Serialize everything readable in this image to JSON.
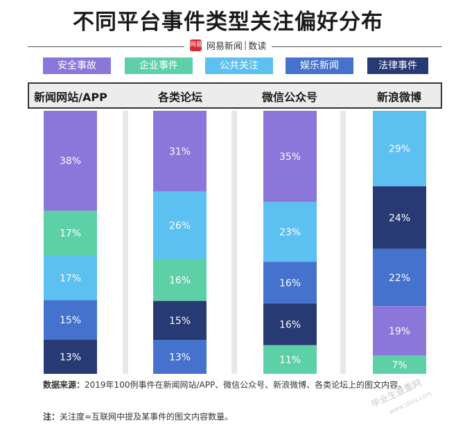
{
  "title": "不同平台事件类型关注偏好分布",
  "brand": {
    "logo_text": "网易",
    "name": "网易新闻",
    "section": "数读"
  },
  "colors": {
    "安全事故": "#8b76d9",
    "企业事件": "#5ed0a8",
    "公共关注": "#5cc0f0",
    "娱乐新闻": "#4472cc",
    "法律事件": "#283a73"
  },
  "chart_data": {
    "type": "bar",
    "stacked": true,
    "unit": "%",
    "categories": [
      "新闻网站/APP",
      "各类论坛",
      "微信公众号",
      "新浪微博"
    ],
    "legend": [
      "安全事故",
      "企业事件",
      "公共关注",
      "娱乐新闻",
      "法律事件"
    ],
    "stacks": [
      {
        "category": "新闻网站/APP",
        "segments": [
          {
            "name": "安全事故",
            "value": 38
          },
          {
            "name": "企业事件",
            "value": 17
          },
          {
            "name": "公共关注",
            "value": 17
          },
          {
            "name": "娱乐新闻",
            "value": 15
          },
          {
            "name": "法律事件",
            "value": 13
          }
        ]
      },
      {
        "category": "各类论坛",
        "segments": [
          {
            "name": "安全事故",
            "value": 31
          },
          {
            "name": "公共关注",
            "value": 26
          },
          {
            "name": "企业事件",
            "value": 16
          },
          {
            "name": "法律事件",
            "value": 15
          },
          {
            "name": "娱乐新闻",
            "value": 13
          }
        ]
      },
      {
        "category": "微信公众号",
        "segments": [
          {
            "name": "安全事故",
            "value": 35
          },
          {
            "name": "公共关注",
            "value": 23
          },
          {
            "name": "娱乐新闻",
            "value": 16
          },
          {
            "name": "法律事件",
            "value": 16
          },
          {
            "name": "企业事件",
            "value": 11
          }
        ]
      },
      {
        "category": "新浪微博",
        "segments": [
          {
            "name": "公共关注",
            "value": 29
          },
          {
            "name": "法律事件",
            "value": 24
          },
          {
            "name": "娱乐新闻",
            "value": 22
          },
          {
            "name": "安全事故",
            "value": 19
          },
          {
            "name": "企业事件",
            "value": 7
          }
        ]
      }
    ]
  },
  "footer": {
    "source_label": "数据来源：",
    "source_text": "2019年100例事件在新闻网站/APP、微信公众号、新浪微博、各类论坛上的图文内容。",
    "note_label": "注：",
    "note_text": "关注度=互联网中提及某事件的图文内容数量。"
  },
  "watermark": {
    "text": "毕业生查重网",
    "sub": "www.sbvv.com"
  }
}
